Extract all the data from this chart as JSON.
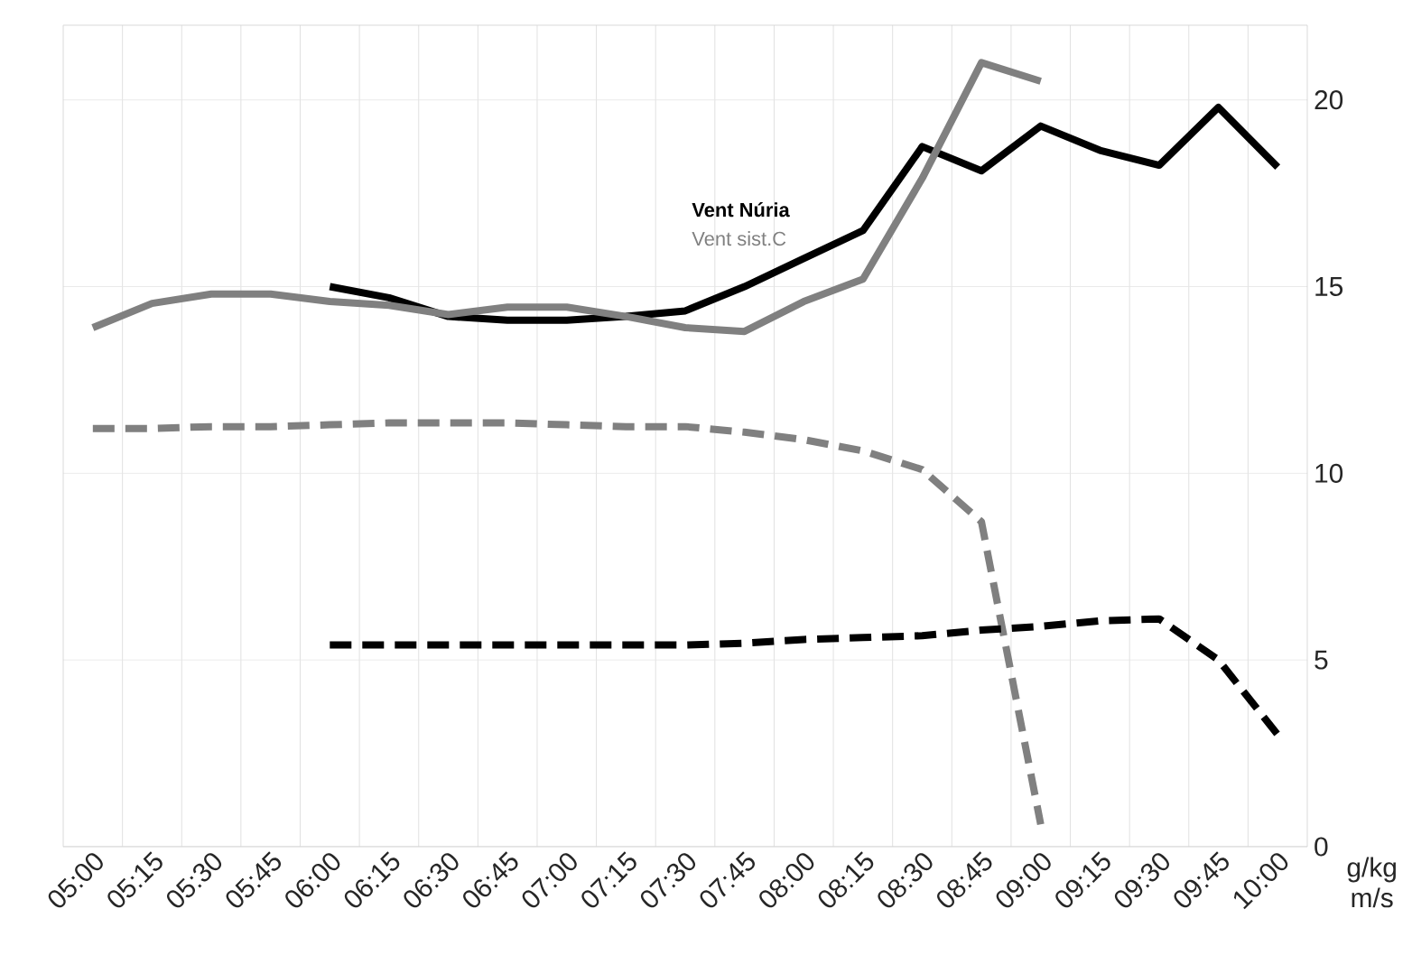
{
  "chart_data": {
    "type": "line",
    "categories": [
      "05:00",
      "05:15",
      "05:30",
      "05:45",
      "06:00",
      "06:15",
      "06:30",
      "06:45",
      "07:00",
      "07:15",
      "07:30",
      "07:45",
      "08:00",
      "08:15",
      "08:30",
      "08:45",
      "09:00",
      "09:15",
      "09:30",
      "09:45",
      "10:00"
    ],
    "series": [
      {
        "name": "Vent Núria",
        "color": "#000000",
        "line_style": "solid",
        "values": [
          null,
          null,
          null,
          null,
          15.0,
          14.7,
          14.2,
          14.1,
          14.1,
          14.2,
          14.35,
          15.0,
          15.75,
          16.5,
          18.75,
          18.1,
          19.3,
          18.65,
          18.25,
          19.8,
          18.2
        ]
      },
      {
        "name": "Vent sist.C",
        "color": "#808080",
        "line_style": "solid",
        "values": [
          13.9,
          14.55,
          14.8,
          14.8,
          14.6,
          14.5,
          14.25,
          14.45,
          14.45,
          14.2,
          13.9,
          13.8,
          14.6,
          15.2,
          17.9,
          21.0,
          20.5,
          null,
          null,
          null,
          null
        ]
      },
      {
        "color": "#808080",
        "line_style": "dashed",
        "values": [
          11.2,
          11.2,
          11.25,
          11.25,
          11.3,
          11.35,
          11.35,
          11.35,
          11.3,
          11.25,
          11.25,
          11.1,
          10.9,
          10.6,
          10.1,
          8.7,
          0.6,
          null,
          null,
          null,
          null
        ]
      },
      {
        "color": "#000000",
        "line_style": "dashed",
        "values": [
          null,
          null,
          null,
          null,
          5.4,
          5.4,
          5.4,
          5.4,
          5.4,
          5.4,
          5.4,
          5.45,
          5.55,
          5.6,
          5.65,
          5.8,
          5.9,
          6.05,
          6.1,
          5.0,
          3.0
        ]
      }
    ],
    "ylabel": "g/kg m/s",
    "ylim": [
      0,
      22
    ],
    "yticks": [
      0,
      5,
      10,
      15,
      20
    ],
    "grid": true,
    "legend": "top",
    "marker": "none"
  }
}
